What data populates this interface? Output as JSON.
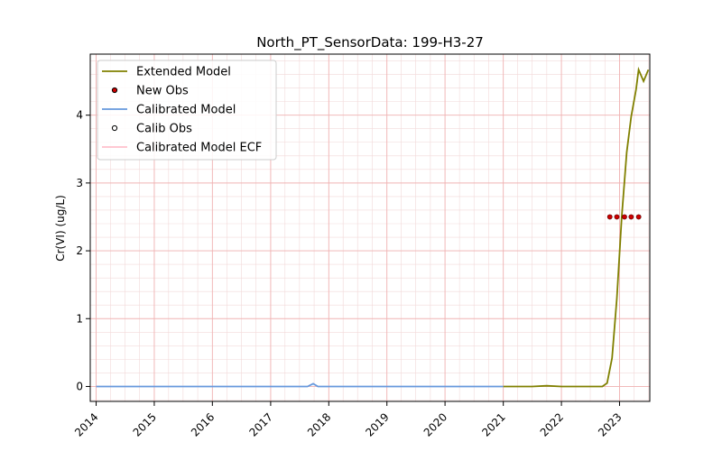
{
  "chart_data": {
    "type": "line",
    "title": "North_PT_SensorData: 199-H3-27",
    "xlabel": "",
    "ylabel": "Cr(VI) (ug/L)",
    "x_axis_type": "date",
    "xlim": [
      "2013-11-25",
      "2023-07-10"
    ],
    "ylim": [
      -0.22,
      4.9
    ],
    "x_ticks": [
      "2014",
      "2015",
      "2016",
      "2017",
      "2018",
      "2019",
      "2020",
      "2021",
      "2022",
      "2023"
    ],
    "y_ticks": [
      0,
      1,
      2,
      3,
      4
    ],
    "grid": true,
    "legend_position": "top-left",
    "legend": [
      "Extended Model",
      "New Obs",
      "Calibrated Model",
      "Calib Obs",
      "Calibrated Model ECF"
    ],
    "series": [
      {
        "name": "Extended Model",
        "kind": "line",
        "color": "#808000",
        "points": [
          [
            "2021-01-01",
            0.0
          ],
          [
            "2021-04-01",
            0.0
          ],
          [
            "2021-07-01",
            0.0
          ],
          [
            "2021-10-01",
            0.01
          ],
          [
            "2022-01-01",
            0.0
          ],
          [
            "2022-04-01",
            0.0
          ],
          [
            "2022-07-01",
            0.0
          ],
          [
            "2022-09-15",
            0.0
          ],
          [
            "2022-10-15",
            0.05
          ],
          [
            "2022-11-15",
            0.42
          ],
          [
            "2022-12-15",
            1.3
          ],
          [
            "2023-01-15",
            2.5
          ],
          [
            "2023-02-15",
            3.45
          ],
          [
            "2023-03-15",
            3.98
          ],
          [
            "2023-04-15",
            4.38
          ],
          [
            "2023-05-01",
            4.67
          ],
          [
            "2023-06-01",
            4.5
          ],
          [
            "2023-07-01",
            4.67
          ]
        ]
      },
      {
        "name": "New Obs",
        "kind": "scatter",
        "color": "#cc0000",
        "points": [
          [
            "2022-11-01",
            2.5
          ],
          [
            "2022-12-15",
            2.5
          ],
          [
            "2023-02-01",
            2.5
          ],
          [
            "2023-03-15",
            2.5
          ],
          [
            "2023-05-01",
            2.5
          ]
        ]
      },
      {
        "name": "Calibrated Model",
        "kind": "line",
        "color": "#6699dd",
        "points": [
          [
            "2014-01-01",
            0.0
          ],
          [
            "2015-01-01",
            0.0
          ],
          [
            "2016-01-01",
            0.0
          ],
          [
            "2017-01-01",
            0.0
          ],
          [
            "2017-08-20",
            0.0
          ],
          [
            "2017-09-25",
            0.04
          ],
          [
            "2017-10-25",
            0.0
          ],
          [
            "2018-06-01",
            0.0
          ],
          [
            "2019-01-01",
            0.0
          ],
          [
            "2020-01-01",
            0.0
          ],
          [
            "2021-01-01",
            0.0
          ]
        ]
      },
      {
        "name": "Calib Obs",
        "kind": "scatter",
        "color": "#000000",
        "points": []
      },
      {
        "name": "Calibrated Model ECF",
        "kind": "line",
        "color": "#ffc0cb",
        "points": []
      }
    ]
  }
}
